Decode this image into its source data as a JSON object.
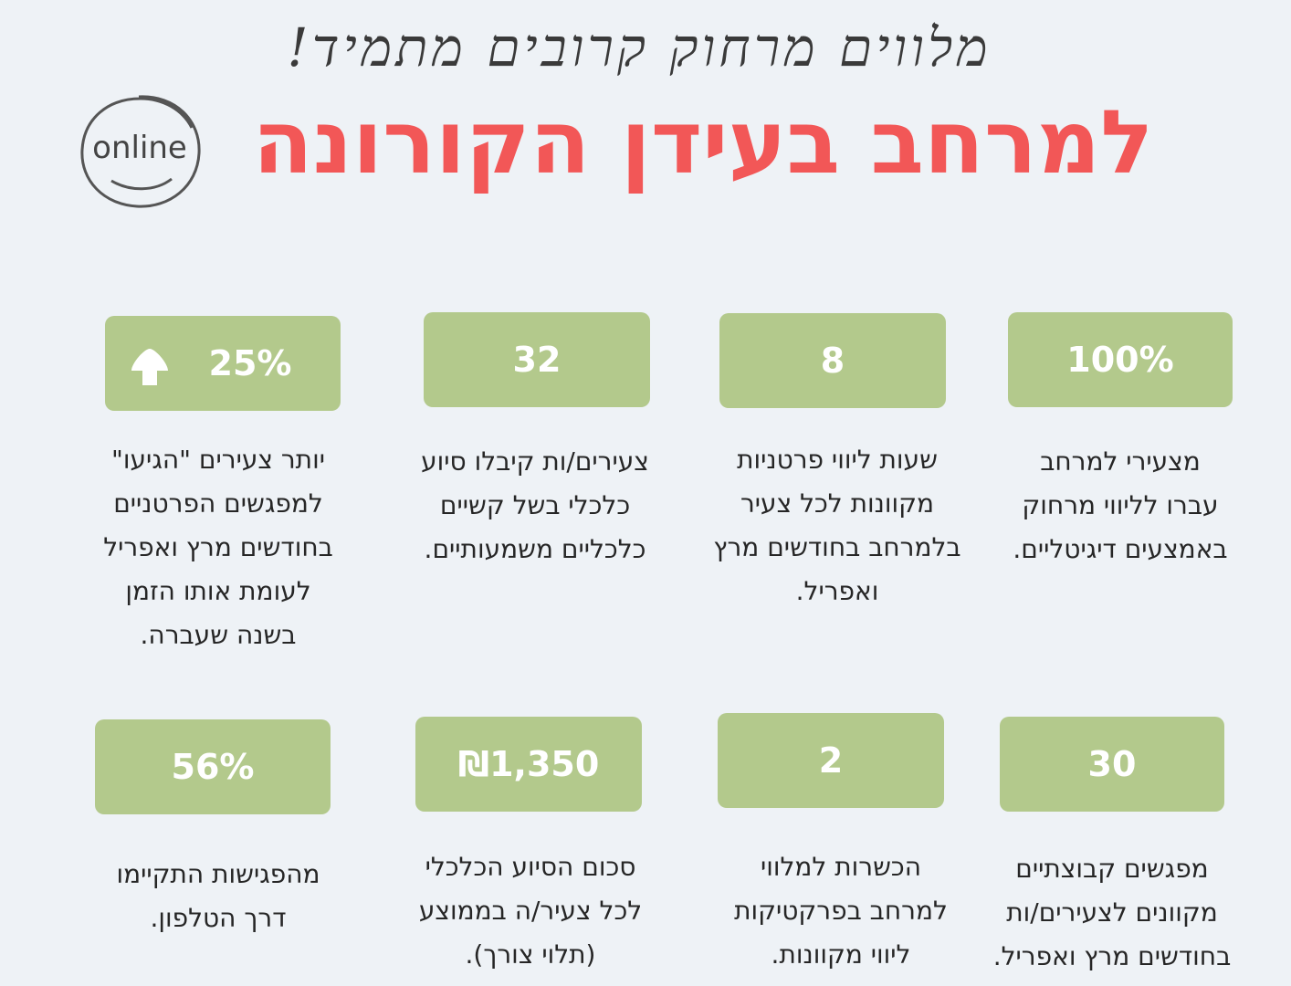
{
  "header": {
    "subtitle": "מלווים מרחוק קרובים מתמיד!",
    "title": "למרחב בעידן הקורונה",
    "badge_label": "online"
  },
  "stats": [
    {
      "value": "100%",
      "description": "מצעירי למרחב\nעברו לליווי מרחוק\nבאמצעים דיגיטליים."
    },
    {
      "value": "8",
      "description": "שעות ליווי פרטניות\nמקוונות לכל צעיר\nבלמרחב בחודשים מרץ\nואפריל."
    },
    {
      "value": "32",
      "description": "צעירים/ות קיבלו סיוע\nכלכלי בשל קשיים\nכלכליים משמעותיים."
    },
    {
      "value": "25%",
      "description": "יותר צעירים \"הגיעו\"\nלמפגשים הפרטניים\nבחודשים מרץ ואפריל\nלעומת אותו הזמן\nבשנה שעברה.",
      "icon": "up-arrow-icon"
    },
    {
      "value": "30",
      "description": "מפגשים קבוצתיים\nמקוונים לצעירים/ות\nבחודשים מרץ ואפריל."
    },
    {
      "value": "2",
      "description": "הכשרות למלווי\nלמרחב בפרקטיקות\nליווי מקוונות."
    },
    {
      "value": "₪1,350",
      "description": "סכום הסיוע הכלכלי\nלכל צעיר/ה בממוצע\n(תלוי צורך)."
    },
    {
      "value": "56%",
      "description": "מהפגישות התקיימו\nדרך הטלפון."
    }
  ],
  "colors": {
    "accent": "#f25757",
    "box": "#b3c98c",
    "background": "#eef2f6"
  }
}
